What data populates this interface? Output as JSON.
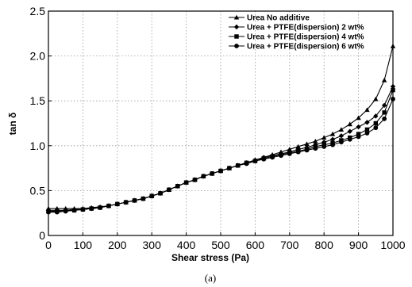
{
  "chart_data": {
    "type": "line",
    "xlabel": "Shear stress (Pa)",
    "ylabel": "tan δ",
    "caption": "(a)",
    "xlim": [
      0,
      1000
    ],
    "ylim": [
      0,
      2.5
    ],
    "xticks": [
      "0",
      "100",
      "200",
      "300",
      "400",
      "500",
      "600",
      "700",
      "800",
      "900",
      "1000"
    ],
    "yticks": [
      "0",
      "0.5",
      "1.0",
      "1.5",
      "2.0",
      "2.5"
    ],
    "grid": true,
    "legend_position": "top-right",
    "x": [
      0,
      25,
      50,
      75,
      100,
      125,
      150,
      175,
      200,
      225,
      250,
      275,
      300,
      325,
      350,
      375,
      400,
      425,
      450,
      475,
      500,
      525,
      550,
      575,
      600,
      625,
      650,
      675,
      700,
      725,
      750,
      775,
      800,
      825,
      850,
      875,
      900,
      925,
      950,
      975,
      1000
    ],
    "series": [
      {
        "name": "Urea No additive",
        "marker": "triangle",
        "values": [
          0.3,
          0.3,
          0.3,
          0.3,
          0.3,
          0.31,
          0.32,
          0.33,
          0.35,
          0.37,
          0.39,
          0.41,
          0.44,
          0.47,
          0.51,
          0.55,
          0.59,
          0.62,
          0.66,
          0.69,
          0.72,
          0.75,
          0.78,
          0.81,
          0.84,
          0.87,
          0.9,
          0.93,
          0.96,
          0.99,
          1.02,
          1.05,
          1.09,
          1.13,
          1.18,
          1.24,
          1.31,
          1.4,
          1.52,
          1.73,
          2.11
        ]
      },
      {
        "name": "Urea + PTFE(dispersion) 2 wt%",
        "marker": "diamond",
        "values": [
          0.28,
          0.28,
          0.28,
          0.29,
          0.29,
          0.3,
          0.31,
          0.33,
          0.35,
          0.37,
          0.39,
          0.41,
          0.44,
          0.47,
          0.51,
          0.55,
          0.59,
          0.62,
          0.66,
          0.69,
          0.72,
          0.75,
          0.78,
          0.81,
          0.84,
          0.87,
          0.89,
          0.91,
          0.93,
          0.96,
          0.98,
          1.01,
          1.04,
          1.07,
          1.11,
          1.16,
          1.21,
          1.26,
          1.33,
          1.45,
          1.66
        ]
      },
      {
        "name": "Urea + PTFE(dispersion) 4 wt%",
        "marker": "square",
        "values": [
          0.27,
          0.27,
          0.28,
          0.28,
          0.29,
          0.3,
          0.31,
          0.33,
          0.35,
          0.37,
          0.39,
          0.41,
          0.44,
          0.47,
          0.51,
          0.55,
          0.59,
          0.62,
          0.66,
          0.69,
          0.72,
          0.75,
          0.78,
          0.81,
          0.83,
          0.86,
          0.88,
          0.9,
          0.92,
          0.94,
          0.96,
          0.99,
          1.01,
          1.03,
          1.06,
          1.09,
          1.13,
          1.18,
          1.25,
          1.37,
          1.62
        ]
      },
      {
        "name": "Urea + PTFE(dispersion) 6 wt%",
        "marker": "circle",
        "values": [
          0.26,
          0.26,
          0.27,
          0.28,
          0.29,
          0.3,
          0.31,
          0.33,
          0.35,
          0.37,
          0.39,
          0.41,
          0.44,
          0.47,
          0.51,
          0.55,
          0.59,
          0.62,
          0.66,
          0.69,
          0.72,
          0.75,
          0.78,
          0.8,
          0.83,
          0.85,
          0.87,
          0.89,
          0.91,
          0.93,
          0.95,
          0.97,
          0.99,
          1.01,
          1.04,
          1.07,
          1.1,
          1.14,
          1.2,
          1.3,
          1.52
        ]
      }
    ]
  }
}
